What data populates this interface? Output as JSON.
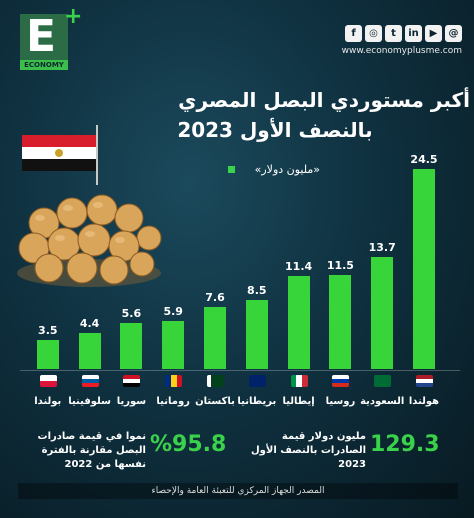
{
  "brand": {
    "logo_letter": "E",
    "logo_plus": "+",
    "logo_word": "ECONOMY",
    "website": "www.economyplusme.com",
    "social_icons": [
      "facebook-icon",
      "instagram-icon",
      "twitter-icon",
      "linkedin-icon",
      "youtube-icon",
      "threads-icon"
    ],
    "accent": "#37d43a"
  },
  "header": {
    "title_line1": "أكبر مستوردي البصل المصري",
    "title_line2": "بالنصف الأول 2023",
    "unit": "«مليون دولار»"
  },
  "chart_data": {
    "type": "bar",
    "categories": [
      "هولندا",
      "السعودية",
      "روسيا",
      "إيطاليا",
      "بريطانيا",
      "باكستان",
      "رومانيا",
      "سوريا",
      "سلوفينيا",
      "بولندا"
    ],
    "values": [
      24.5,
      13.7,
      11.5,
      11.4,
      8.5,
      7.6,
      5.9,
      5.6,
      4.4,
      3.5
    ],
    "value_labels": [
      "24.5",
      "13.7",
      "11.5",
      "11.4",
      "8.5",
      "7.6",
      "5.9",
      "5.6",
      "4.4",
      "3.5"
    ],
    "ylim": [
      0,
      24.5
    ],
    "grid": false,
    "legend": "none"
  },
  "flags": [
    {
      "name": "netherlands-flag",
      "stripes": [
        "#ae1c28",
        "#ffffff",
        "#21468b"
      ],
      "dir": "h"
    },
    {
      "name": "saudi-flag",
      "stripes": [
        "#006c35"
      ],
      "dir": "h"
    },
    {
      "name": "russia-flag",
      "stripes": [
        "#ffffff",
        "#0039a6",
        "#d52b1e"
      ],
      "dir": "h"
    },
    {
      "name": "italy-flag",
      "stripes": [
        "#009246",
        "#ffffff",
        "#ce2b37"
      ],
      "dir": "v"
    },
    {
      "name": "uk-flag",
      "stripes": [
        "#012169"
      ],
      "dir": "h"
    },
    {
      "name": "pakistan-flag",
      "stripes": [
        "#ffffff",
        "#01411c",
        "#01411c",
        "#01411c"
      ],
      "dir": "v"
    },
    {
      "name": "romania-flag",
      "stripes": [
        "#002b7f",
        "#fcd116",
        "#ce1126"
      ],
      "dir": "v"
    },
    {
      "name": "syria-flag",
      "stripes": [
        "#ce1126",
        "#ffffff",
        "#000000"
      ],
      "dir": "h"
    },
    {
      "name": "slovenia-flag",
      "stripes": [
        "#ffffff",
        "#005da4",
        "#ed1c24"
      ],
      "dir": "h"
    },
    {
      "name": "poland-flag",
      "stripes": [
        "#ffffff",
        "#dc143c"
      ],
      "dir": "h"
    }
  ],
  "stats": {
    "total_value": "129.3",
    "total_text": "مليون دولار قيمة الصادرات بالنصف الأول 2023",
    "growth_value": "%95.8",
    "growth_text": "نموا في قيمة صادرات البصل مقارنة بالفترة نفسها من 2022"
  },
  "footer": {
    "source": "المصدر الجهاز المركزي للتعبئة العامة والإحصاء"
  }
}
